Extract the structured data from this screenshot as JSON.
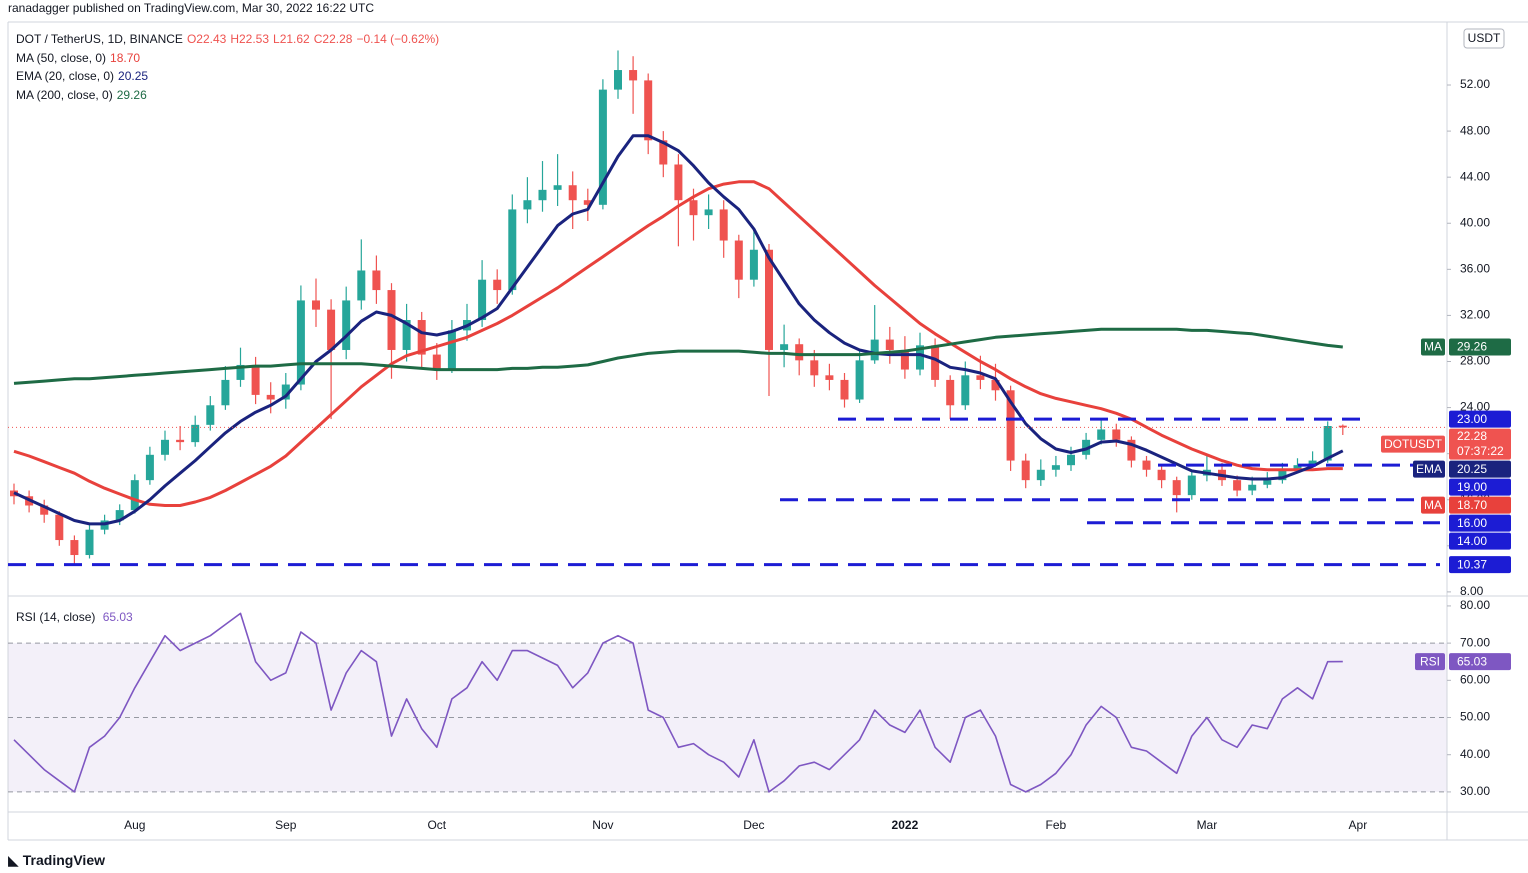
{
  "header": {
    "published": "ranadagger published on TradingView.com, Mar 30, 2022 16:22 UTC",
    "footer_logo": "TradingView"
  },
  "chart_data": [
    {
      "type": "candlestick",
      "title": "DOT / TetherUS, 1D, BINANCE",
      "ohlc_labels": [
        "O22.43",
        "H22.53",
        "L21.62",
        "C22.28"
      ],
      "change_label": "−0.14 (−0.62%)",
      "currency": "USDT",
      "symbol_tag": "DOTUSDT",
      "last_price_label": "22.28",
      "countdown": "07:37:22",
      "up_color": "#26a69a",
      "down_color": "#ef5350",
      "categories": [
        null,
        null,
        null,
        null,
        null,
        null,
        null,
        null,
        "Aug",
        null,
        null,
        null,
        null,
        null,
        null,
        null,
        null,
        null,
        "Sep",
        null,
        null,
        null,
        null,
        null,
        null,
        null,
        null,
        null,
        "Oct",
        null,
        null,
        null,
        null,
        null,
        null,
        null,
        null,
        null,
        null,
        "Nov",
        null,
        null,
        null,
        null,
        null,
        null,
        null,
        null,
        null,
        "Dec",
        null,
        null,
        null,
        null,
        null,
        null,
        null,
        null,
        null,
        "2022",
        null,
        null,
        null,
        null,
        null,
        null,
        null,
        null,
        null,
        "Feb",
        null,
        null,
        null,
        null,
        null,
        null,
        null,
        null,
        null,
        "Mar",
        null,
        null,
        null,
        null,
        null,
        null,
        null,
        null,
        null,
        "Apr"
      ],
      "open": [
        16.8,
        16.3,
        15.5,
        14.7,
        12.5,
        11.2,
        13.4,
        14.2,
        15.1,
        17.7,
        19.9,
        21.2,
        21.0,
        22.5,
        24.2,
        26.4,
        27.7,
        25.1,
        24.7,
        26.0,
        33.3,
        32.5,
        29.0,
        33.3,
        35.9,
        34.2,
        29.0,
        31.6,
        28.6,
        27.3,
        30.7,
        31.6,
        35.1,
        34.2,
        41.2,
        42.0,
        42.9,
        43.3,
        42.0,
        41.6,
        51.6,
        53.3,
        52.4,
        47.2,
        45.1,
        42.0,
        40.7,
        41.2,
        38.5,
        35.1,
        37.7,
        29.0,
        29.5,
        28.1,
        26.8,
        26.4,
        24.7,
        28.1,
        29.9,
        29.0,
        27.3,
        29.4,
        26.4,
        24.2,
        26.8,
        26.4,
        25.5,
        19.4,
        17.7,
        18.6,
        19.0,
        19.9,
        21.2,
        22.1,
        21.2,
        19.4,
        18.6,
        17.7,
        16.4,
        18.1,
        18.6,
        17.7,
        16.8,
        17.3,
        17.7,
        18.6,
        19.0,
        19.4,
        22.43,
        null
      ],
      "high": [
        17.4,
        16.8,
        16.0,
        15.0,
        12.9,
        13.8,
        14.7,
        15.6,
        18.2,
        20.6,
        22.0,
        22.4,
        23.3,
        25.0,
        27.6,
        29.2,
        28.4,
        26.2,
        27.0,
        34.6,
        35.2,
        33.4,
        34.5,
        38.6,
        37.2,
        34.8,
        33.0,
        32.3,
        29.6,
        31.6,
        33.0,
        36.8,
        36.0,
        42.5,
        44.0,
        45.4,
        46.0,
        44.5,
        43.0,
        52.5,
        55.0,
        54.5,
        53.0,
        48.0,
        46.0,
        43.0,
        42.5,
        42.0,
        39.0,
        39.5,
        38.2,
        31.2,
        30.0,
        29.0,
        27.8,
        27.0,
        29.0,
        32.9,
        31.0,
        30.2,
        30.5,
        30.0,
        26.8,
        28.0,
        28.5,
        27.8,
        25.9,
        20.0,
        19.5,
        19.8,
        20.6,
        21.8,
        22.9,
        22.6,
        21.5,
        19.8,
        19.0,
        18.0,
        18.6,
        19.8,
        19.2,
        18.1,
        18.0,
        18.4,
        19.2,
        19.6,
        20.2,
        22.8,
        22.53,
        null
      ],
      "low": [
        15.6,
        14.9,
        14.0,
        12.0,
        10.4,
        10.9,
        13.0,
        13.8,
        14.8,
        17.3,
        19.4,
        20.3,
        20.6,
        22.0,
        23.8,
        25.8,
        24.3,
        23.5,
        23.9,
        25.5,
        31.0,
        23.0,
        28.2,
        32.5,
        33.0,
        26.5,
        28.0,
        27.5,
        26.4,
        27.0,
        29.8,
        31.0,
        33.0,
        33.8,
        40.0,
        41.0,
        41.5,
        39.5,
        40.2,
        41.2,
        50.8,
        49.5,
        46.0,
        44.0,
        38.0,
        38.5,
        39.5,
        37.0,
        33.5,
        34.5,
        25.0,
        27.5,
        26.8,
        25.8,
        25.5,
        24.0,
        24.4,
        27.8,
        27.8,
        26.5,
        26.8,
        25.8,
        23.0,
        23.8,
        25.6,
        24.6,
        18.5,
        17.0,
        17.2,
        18.0,
        18.5,
        19.5,
        20.8,
        20.6,
        18.8,
        18.0,
        17.0,
        14.9,
        16.0,
        17.6,
        17.2,
        16.3,
        16.4,
        17.0,
        17.4,
        18.3,
        18.8,
        19.2,
        21.62,
        null
      ],
      "close": [
        16.3,
        15.5,
        14.7,
        12.5,
        11.2,
        13.4,
        14.2,
        15.1,
        17.7,
        19.9,
        21.2,
        21.0,
        22.5,
        24.2,
        26.4,
        27.7,
        25.1,
        24.7,
        26.0,
        33.3,
        32.5,
        29.0,
        33.3,
        35.9,
        34.2,
        29.0,
        31.6,
        28.6,
        27.3,
        30.7,
        31.6,
        35.1,
        34.2,
        41.2,
        42.0,
        42.9,
        43.3,
        42.0,
        41.6,
        51.6,
        53.3,
        52.4,
        47.2,
        45.1,
        42.0,
        40.7,
        41.2,
        38.5,
        35.1,
        37.7,
        29.0,
        29.5,
        28.1,
        26.8,
        26.4,
        24.7,
        28.1,
        29.9,
        29.0,
        27.3,
        29.4,
        26.4,
        24.2,
        26.8,
        26.4,
        25.5,
        19.4,
        17.7,
        18.6,
        19.0,
        19.9,
        21.2,
        22.1,
        21.2,
        19.4,
        18.6,
        17.7,
        16.4,
        18.1,
        18.6,
        17.7,
        16.8,
        17.3,
        17.7,
        18.6,
        19.0,
        19.4,
        22.4,
        22.28,
        null
      ],
      "series": [
        {
          "name": "MA (50, close, 0)",
          "legend_value": "18.70",
          "tag": "MA",
          "color": "#e8413c",
          "values": [
            20.2,
            19.8,
            19.3,
            18.8,
            18.3,
            17.6,
            17.0,
            16.5,
            16.0,
            15.6,
            15.5,
            15.5,
            15.8,
            16.2,
            16.8,
            17.5,
            18.2,
            18.9,
            19.8,
            21.0,
            22.2,
            23.4,
            24.6,
            25.8,
            26.8,
            27.8,
            28.5,
            28.9,
            29.3,
            29.7,
            30.1,
            30.7,
            31.3,
            32.0,
            32.8,
            33.6,
            34.4,
            35.3,
            36.2,
            37.1,
            38.0,
            38.9,
            39.8,
            40.6,
            41.5,
            42.3,
            43.0,
            43.4,
            43.6,
            43.6,
            43.0,
            41.8,
            40.6,
            39.4,
            38.2,
            37.0,
            35.8,
            34.6,
            33.5,
            32.4,
            31.3,
            30.4,
            29.6,
            28.8,
            28.0,
            27.3,
            26.5,
            25.8,
            25.2,
            24.8,
            24.5,
            24.2,
            23.9,
            23.5,
            23.0,
            22.3,
            21.6,
            21.0,
            20.4,
            19.9,
            19.4,
            19.0,
            18.7,
            18.6,
            18.6,
            18.6,
            18.6,
            18.7,
            18.7,
            null
          ]
        },
        {
          "name": "EMA (20, close, 0)",
          "legend_value": "20.25",
          "tag": "EMA",
          "color": "#1a237e",
          "values": [
            16.6,
            16.0,
            15.4,
            14.8,
            14.2,
            13.9,
            13.9,
            14.2,
            15.0,
            16.0,
            17.2,
            18.3,
            19.4,
            20.6,
            21.8,
            22.8,
            23.6,
            24.2,
            25.0,
            26.5,
            28.0,
            29.0,
            30.2,
            31.5,
            32.3,
            32.0,
            31.3,
            30.5,
            30.3,
            30.6,
            31.1,
            31.8,
            32.6,
            34.4,
            36.2,
            38.0,
            39.8,
            40.8,
            41.2,
            43.5,
            45.8,
            47.6,
            47.6,
            47.0,
            46.3,
            45.0,
            43.5,
            42.3,
            41.2,
            39.5,
            37.0,
            35.0,
            33.0,
            31.6,
            30.5,
            29.6,
            29.0,
            28.7,
            28.6,
            28.6,
            28.6,
            28.2,
            27.5,
            27.3,
            27.0,
            26.5,
            24.5,
            22.6,
            21.3,
            20.4,
            20.1,
            20.4,
            21.0,
            21.1,
            20.8,
            20.3,
            19.7,
            19.1,
            18.5,
            18.3,
            18.1,
            17.9,
            17.8,
            17.8,
            17.9,
            18.4,
            18.9,
            19.6,
            20.25,
            null
          ]
        },
        {
          "name": "MA (200, close, 0)",
          "legend_value": "29.26",
          "tag": "MA",
          "color": "#1e6b45",
          "values": [
            26.1,
            26.2,
            26.3,
            26.4,
            26.5,
            26.5,
            26.6,
            26.7,
            26.8,
            26.9,
            27.0,
            27.1,
            27.2,
            27.3,
            27.4,
            27.5,
            27.6,
            27.6,
            27.7,
            27.8,
            27.8,
            27.8,
            27.8,
            27.8,
            27.7,
            27.6,
            27.5,
            27.4,
            27.3,
            27.3,
            27.3,
            27.3,
            27.3,
            27.4,
            27.4,
            27.5,
            27.5,
            27.6,
            27.7,
            28.0,
            28.3,
            28.5,
            28.7,
            28.8,
            28.9,
            28.9,
            28.9,
            28.9,
            28.9,
            28.8,
            28.7,
            28.7,
            28.6,
            28.6,
            28.6,
            28.6,
            28.6,
            28.7,
            28.8,
            28.9,
            29.1,
            29.3,
            29.5,
            29.7,
            29.9,
            30.1,
            30.2,
            30.3,
            30.4,
            30.5,
            30.6,
            30.7,
            30.8,
            30.8,
            30.8,
            30.8,
            30.8,
            30.8,
            30.7,
            30.7,
            30.6,
            30.5,
            30.4,
            30.2,
            30.0,
            29.8,
            29.6,
            29.4,
            29.26,
            null
          ]
        }
      ],
      "ylim": [
        7.73,
        57.47
      ],
      "yticks": [
        {
          "value": 8,
          "label": "8.00"
        },
        {
          "value": 12,
          "label": "12.00"
        },
        {
          "value": 16,
          "label": "16.00"
        },
        {
          "value": 20,
          "label": "20.00"
        },
        {
          "value": 24,
          "label": "24.00"
        },
        {
          "value": 28,
          "label": "28.00"
        },
        {
          "value": 32,
          "label": "32.00"
        },
        {
          "value": 36,
          "label": "36.00"
        },
        {
          "value": 40,
          "label": "40.00"
        },
        {
          "value": 44,
          "label": "44.00"
        },
        {
          "value": 48,
          "label": "48.00"
        },
        {
          "value": 52,
          "label": "52.00"
        }
      ],
      "level_color": "#1c1cd4",
      "levels": [
        {
          "value": 23,
          "label": "23.00"
        },
        {
          "value": 19,
          "label": "19.00"
        },
        {
          "value": 16,
          "label": "16.00"
        },
        {
          "value": 14,
          "label": "14.00"
        },
        {
          "value": 10.37,
          "label": "10.37"
        }
      ]
    },
    {
      "type": "line",
      "series": [
        {
          "name": "RSI (14, close)",
          "legend_value": "65.03",
          "tag": "RSI",
          "color": "#7e57c2",
          "values": [
            44,
            40,
            36,
            33,
            30,
            42,
            45,
            50,
            58,
            65,
            72,
            68,
            70,
            72,
            75,
            78,
            65,
            60,
            62,
            73,
            70,
            52,
            62,
            68,
            65,
            45,
            55,
            47,
            42,
            55,
            58,
            65,
            60,
            68,
            68,
            66,
            64,
            58,
            62,
            70,
            72,
            70,
            52,
            50,
            42,
            43,
            40,
            38,
            34,
            44,
            30,
            33,
            37,
            38,
            36,
            40,
            44,
            52,
            48,
            46,
            52,
            42,
            38,
            50,
            52,
            45,
            32,
            30,
            32,
            35,
            40,
            48,
            53,
            50,
            42,
            41,
            38,
            35,
            45,
            50,
            44,
            42,
            48,
            47,
            55,
            58,
            55,
            65,
            65.03,
            null
          ]
        }
      ],
      "ylim": [
        24.6,
        82.4
      ],
      "yticks": [
        {
          "value": 30,
          "label": "30.00"
        },
        {
          "value": 40,
          "label": "40.00"
        },
        {
          "value": 50,
          "label": "50.00"
        },
        {
          "value": 60,
          "label": "60.00"
        },
        {
          "value": 70,
          "label": "70.00"
        },
        {
          "value": 80,
          "label": "80.00"
        }
      ],
      "band": {
        "upper": 70,
        "middle": 50,
        "lower": 30
      },
      "band_color": "#7e57c2"
    }
  ]
}
